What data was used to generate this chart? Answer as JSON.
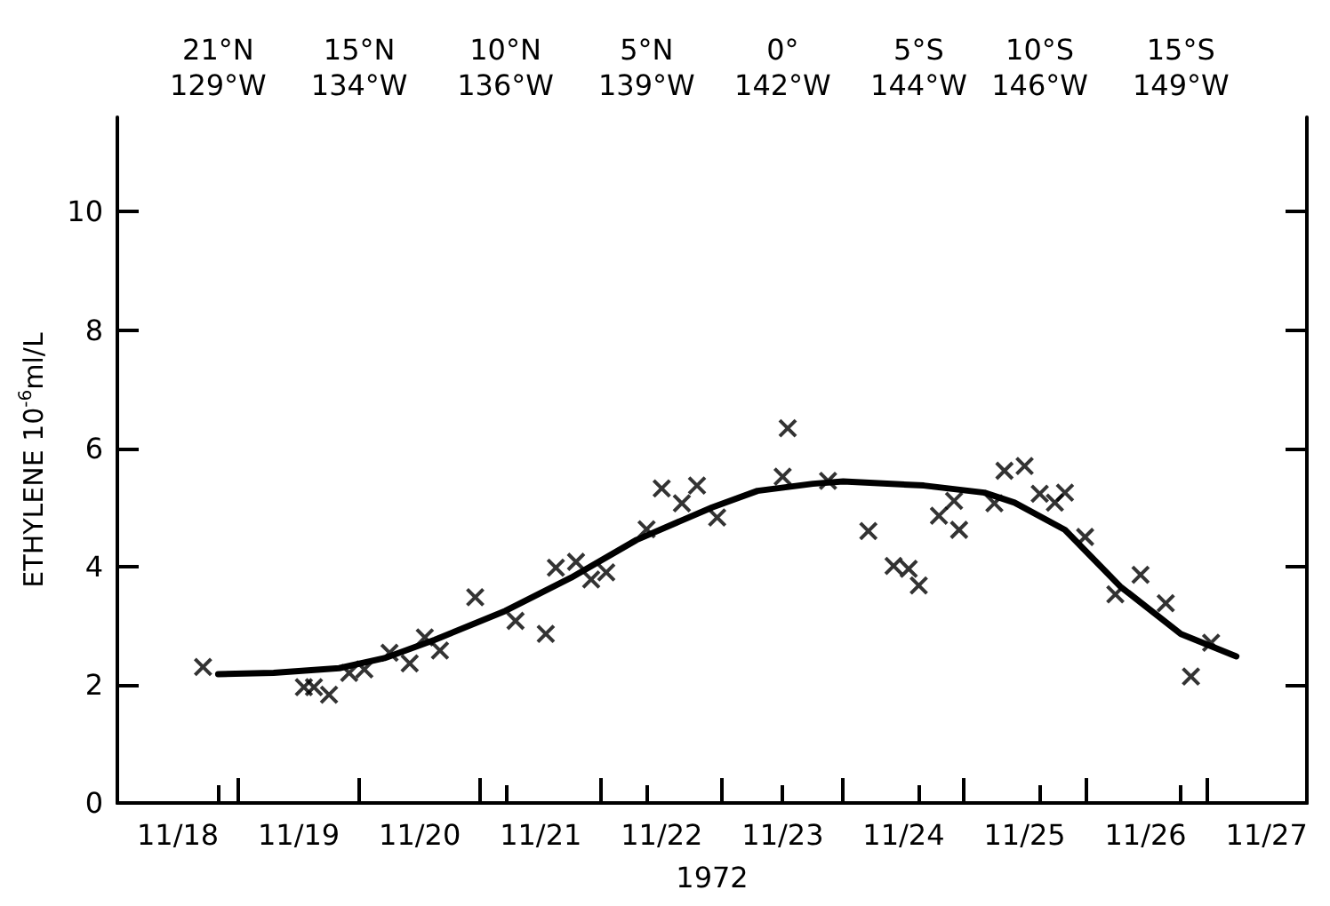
{
  "chart_data": {
    "type": "scatter",
    "xlabel": "1972",
    "ylabel": "ETHYLENE 10$^{-6}$ml/L",
    "xlim": [
      "1972-11-18T00:00",
      "1972-11-27T20:00"
    ],
    "ylim": [
      0,
      11.6
    ],
    "yticks": [
      0,
      2,
      4,
      6,
      8,
      10
    ],
    "xticks": [
      {
        "value": "1972-11-18T12:00",
        "label": "11/18"
      },
      {
        "value": "1972-11-19T12:00",
        "label": "11/19"
      },
      {
        "value": "1972-11-20T12:00",
        "label": "11/20"
      },
      {
        "value": "1972-11-21T12:00",
        "label": "11/21"
      },
      {
        "value": "1972-11-22T12:00",
        "label": "11/22"
      },
      {
        "value": "1972-11-23T12:00",
        "label": "11/23"
      },
      {
        "value": "1972-11-24T12:00",
        "label": "11/24"
      },
      {
        "value": "1972-11-25T12:00",
        "label": "11/25"
      },
      {
        "value": "1972-11-26T12:00",
        "label": "11/26"
      },
      {
        "value": "1972-11-27T12:00",
        "label": "11/27"
      },
      {
        "value": "1972-11-19",
        "label": null
      },
      {
        "value": "1972-11-20",
        "label": null
      },
      {
        "value": "1972-11-21",
        "label": null
      },
      {
        "value": "1972-11-22",
        "label": null
      },
      {
        "value": "1972-11-23",
        "label": null
      },
      {
        "value": "1972-11-24",
        "label": null
      },
      {
        "value": "1972-11-25",
        "label": null
      },
      {
        "value": "1972-11-26",
        "label": null
      },
      {
        "value": "1972-11-27",
        "label": null
      }
    ],
    "x2lim": [
      "1972-11-18T00:00",
      "1972-11-27T20:00"
    ],
    "x2ticks": [
      {
        "value": "1972-11-18T20:00",
        "label": "21°N\n129°W"
      },
      {
        "value": "1972-11-20T00:00",
        "label": "15°N\n134°W"
      },
      {
        "value": "1972-11-21T05:00",
        "label": "10°N\n136°W"
      },
      {
        "value": "1972-11-22T09:00",
        "label": "5°N\n139°W"
      },
      {
        "value": "1972-11-23T12:00",
        "label": "0°\n142°W"
      },
      {
        "value": "1972-11-24T15:00",
        "label": "5°S\n144°W"
      },
      {
        "value": "1972-11-25T15:00",
        "label": "10°S\n146°W"
      },
      {
        "value": "1972-11-26T19:00",
        "label": "15°S\n149°W"
      }
    ],
    "marker": "cross",
    "series": [
      {
        "color": "#000000",
        "x": [
          "1972-11-18T17:00",
          "1972-11-19T13:00",
          "1972-11-19T15:00",
          "1972-11-19T18:00",
          "1972-11-19T22:00",
          "1972-11-20T01:00",
          "1972-11-20T06:00",
          "1972-11-20T10:00",
          "1972-11-20T13:00",
          "1972-11-20T16:00",
          "1972-11-20T23:00",
          "1972-11-21T07:00",
          "1972-11-21T13:00",
          "1972-11-21T15:00",
          "1972-11-21T19:00",
          "1972-11-21T22:00",
          "1972-11-22T01:00",
          "1972-11-22T09:00",
          "1972-11-22T12:00",
          "1972-11-22T16:00",
          "1972-11-22T19:00",
          "1972-11-22T23:00",
          "1972-11-23T12:00",
          "1972-11-23T21:00",
          "1972-11-23T13:00",
          "1972-11-24T05:00",
          "1972-11-24T10:00",
          "1972-11-24T13:00",
          "1972-11-24T15:00",
          "1972-11-24T19:00",
          "1972-11-24T22:00",
          "1972-11-24T23:00",
          "1972-11-25T06:00",
          "1972-11-25T08:00",
          "1972-11-25T12:00",
          "1972-11-25T15:00",
          "1972-11-25T18:00",
          "1972-11-25T20:00",
          "1972-11-26T00:00",
          "1972-11-26T06:00",
          "1972-11-26T11:00",
          "1972-11-26T16:00",
          "1972-11-26T21:00",
          "1972-11-27T01:00"
        ],
        "values": [
          2.3,
          1.96,
          1.96,
          1.83,
          2.2,
          2.26,
          2.54,
          2.36,
          2.8,
          2.58,
          3.48,
          3.08,
          2.86,
          3.98,
          4.08,
          3.78,
          3.9,
          4.63,
          5.32,
          5.07,
          5.37,
          4.83,
          5.52,
          5.45,
          6.34,
          4.6,
          4.01,
          3.96,
          3.68,
          4.86,
          5.11,
          4.62,
          5.07,
          5.62,
          5.7,
          5.23,
          5.08,
          5.25,
          4.5,
          3.53,
          3.86,
          3.38,
          2.14,
          2.71
        ]
      },
      {
        "type": "line",
        "color": "#000000",
        "marker": "none",
        "line_style": "solid",
        "x": [
          "1972-11-18T20:00",
          "1972-11-19T07:00",
          "1972-11-19T20:00",
          "1972-11-20T05:00",
          "1972-11-20T15:00",
          "1972-11-21T05:00",
          "1972-11-21T18:00",
          "1972-11-22T07:00",
          "1972-11-22T22:00",
          "1972-11-23T07:00",
          "1972-11-23T18:00",
          "1972-11-24T00:00",
          "1972-11-24T16:00",
          "1972-11-25T04:00",
          "1972-11-25T10:00",
          "1972-11-25T20:00",
          "1972-11-26T07:00",
          "1972-11-26T19:00",
          "1972-11-27T06:00"
        ],
        "values": [
          2.18,
          2.2,
          2.28,
          2.45,
          2.76,
          3.25,
          3.81,
          4.45,
          5.0,
          5.28,
          5.4,
          5.44,
          5.37,
          5.25,
          5.08,
          4.62,
          3.66,
          2.86,
          2.48
        ]
      }
    ]
  }
}
